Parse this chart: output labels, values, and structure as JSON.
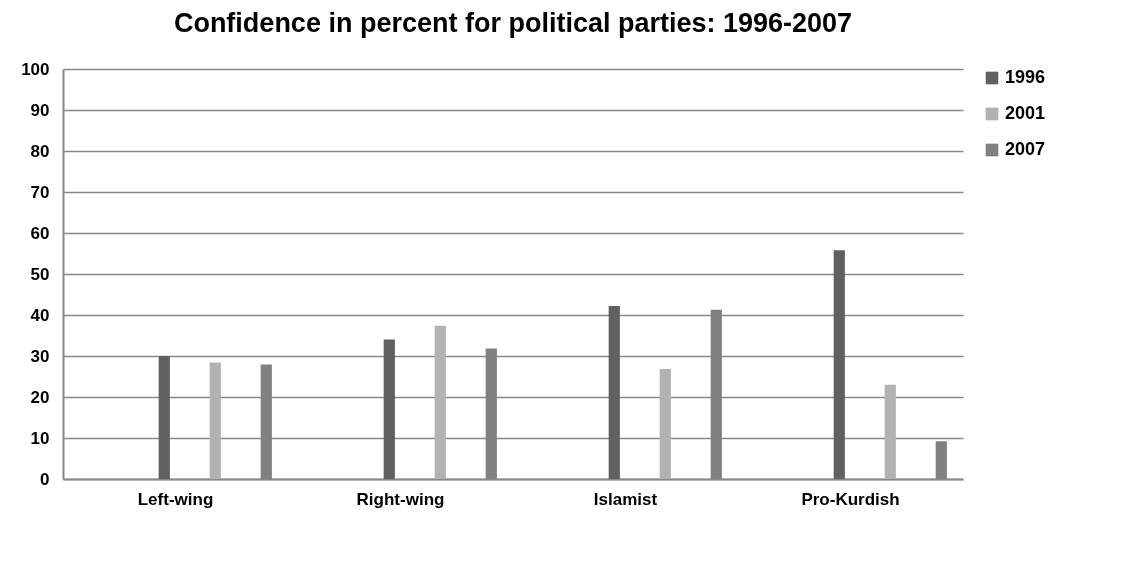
{
  "chart_data": {
    "type": "bar",
    "title": "Confidence in percent for political parties: 1996-2007",
    "categories": [
      "Left-wing",
      "Right-wing",
      "Islamist",
      "Pro-Kurdish"
    ],
    "series": [
      {
        "name": "1996",
        "color": "#606060",
        "values": [
          30,
          34,
          42.2,
          55.8
        ]
      },
      {
        "name": "2001",
        "color": "#b2b2b2",
        "values": [
          28.4,
          37.4,
          26.8,
          23
        ]
      },
      {
        "name": "2007",
        "color": "#808080",
        "values": [
          27.9,
          31.8,
          41.3,
          9.2
        ]
      }
    ],
    "ylim": [
      0,
      100
    ],
    "yticks": [
      0,
      10,
      20,
      30,
      40,
      50,
      60,
      70,
      80,
      90,
      100
    ],
    "grid": "y",
    "legend": "right"
  }
}
